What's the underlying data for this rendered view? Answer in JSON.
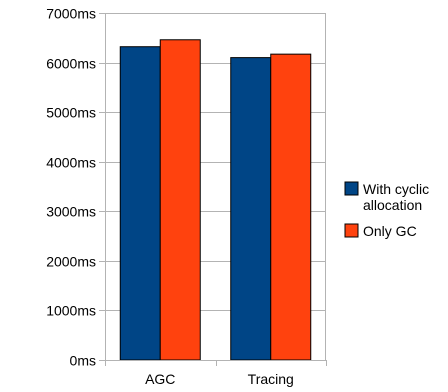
{
  "chart_data": {
    "type": "bar",
    "title": "",
    "xlabel": "",
    "ylabel": "",
    "categories": [
      "AGC",
      "Tracing"
    ],
    "series": [
      {
        "name": "With cyclic allocation",
        "legend_lines": [
          "With cyclic",
          "allocation"
        ],
        "values": [
          6320,
          6100
        ],
        "color": "#004586"
      },
      {
        "name": "Only GC",
        "legend_lines": [
          "Only GC"
        ],
        "values": [
          6460,
          6170
        ],
        "color": "#ff420e"
      }
    ],
    "ylim": [
      0,
      7000
    ],
    "yticks": [
      0,
      1000,
      2000,
      3000,
      4000,
      5000,
      6000,
      7000
    ],
    "ytick_labels": [
      "0ms",
      "1000ms",
      "2000ms",
      "3000ms",
      "4000ms",
      "5000ms",
      "6000ms",
      "7000ms"
    ],
    "grid": true,
    "legend_position": "right"
  }
}
